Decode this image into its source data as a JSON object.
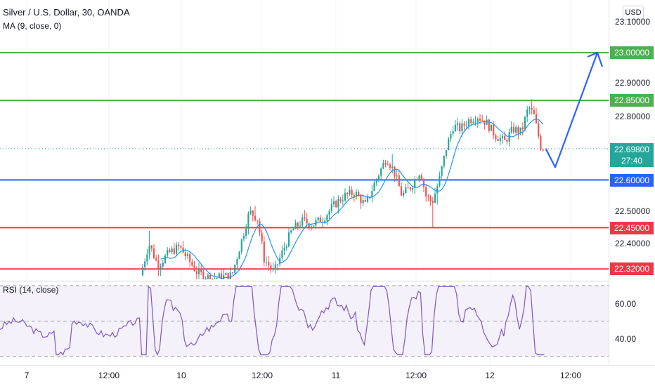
{
  "header": {
    "title": "Silver / U.S. Dollar, 30, OANDA",
    "ma_label": "MA (9, close, 0)",
    "currency": "USD"
  },
  "colors": {
    "up": "#26a69a",
    "down": "#ef5350",
    "ma": "#2196f3",
    "green_line": "#4caf50",
    "blue_line": "#2962ff",
    "red_line": "#f23645",
    "current_price": "#26a69a",
    "rsi": "#7e57c2",
    "rsi_bg": "#ede7f6"
  },
  "chart_data": [
    {
      "type": "candlestick",
      "y_axis_ticks": [
        "23.10000",
        "22.90000",
        "22.80000",
        "22.50000",
        "22.40000"
      ],
      "ylim": [
        22.3,
        23.125
      ],
      "x_ticks": [
        "7",
        "12:00",
        "10",
        "12:00",
        "11",
        "12:00",
        "12",
        "12:00"
      ],
      "horizontal_levels": [
        {
          "value": 23.0,
          "label": "23.00000",
          "color": "#4caf50"
        },
        {
          "value": 22.85,
          "label": "22.85000",
          "color": "#4caf50"
        },
        {
          "value": 22.6,
          "label": "22.60000",
          "color": "#2962ff"
        },
        {
          "value": 22.45,
          "label": "22.45000",
          "color": "#f23645"
        },
        {
          "value": 22.32,
          "label": "22.32000",
          "color": "#f23645"
        }
      ],
      "current_price": {
        "value": 22.698,
        "label": "22.69800",
        "countdown": "27:40"
      },
      "projection": {
        "low": 22.64,
        "high": 23.0
      }
    },
    {
      "type": "line",
      "title": "RSI (14, close)",
      "y_axis_ticks": [
        "60.00",
        "40.00"
      ],
      "levels": [
        70,
        50,
        30
      ],
      "ylim": [
        28,
        72
      ]
    }
  ]
}
